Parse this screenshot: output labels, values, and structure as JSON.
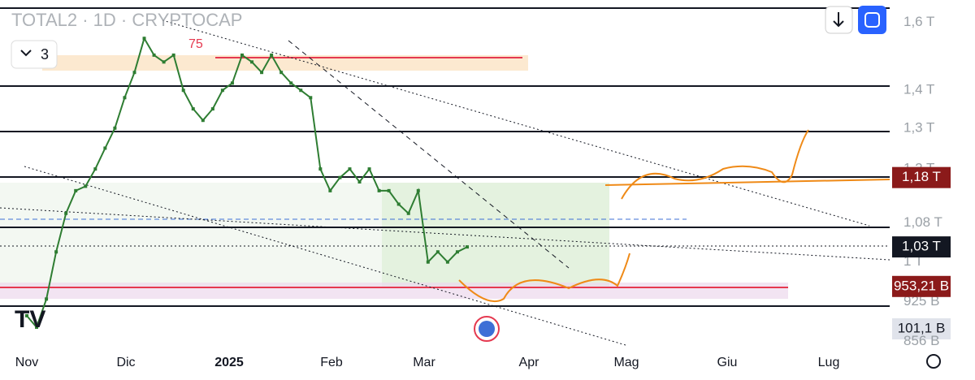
{
  "header": {
    "title": "TOTAL2 · 1D · CRYPTOCAP",
    "indicator_count": "3",
    "level_label": "75"
  },
  "chart_data": {
    "type": "line",
    "log_scale": true,
    "color": "#2e7d32",
    "ylim": [
      0.843,
      1.65
    ],
    "yticks": [
      {
        "value": 1.6,
        "label": "1,6 T"
      },
      {
        "value": 1.4,
        "label": "1,4 T"
      },
      {
        "value": 1.3,
        "label": "1,3 T"
      },
      {
        "value": 1.2,
        "label": "1,2 T"
      },
      {
        "value": 1.08,
        "label": "1,08 T"
      },
      {
        "value": 1,
        "label": "1 T"
      },
      {
        "value": 0.925,
        "label": "925 B"
      },
      {
        "value": 0.856,
        "label": "856 B"
      }
    ],
    "xticks": [
      "Nov",
      "Dic",
      "2025",
      "Feb",
      "Mar",
      "Apr",
      "Mag",
      "Giu",
      "Lug"
    ],
    "values": [
      0.9,
      0.88,
      0.93,
      1.02,
      1.1,
      1.15,
      1.16,
      1.2,
      1.25,
      1.3,
      1.38,
      1.45,
      1.55,
      1.5,
      1.48,
      1.5,
      1.4,
      1.35,
      1.32,
      1.35,
      1.4,
      1.42,
      1.5,
      1.48,
      1.45,
      1.5,
      1.45,
      1.42,
      1.4,
      1.38,
      1.2,
      1.15,
      1.18,
      1.2,
      1.17,
      1.2,
      1.15,
      1.15,
      1.12,
      1.1,
      1.15,
      1.0,
      1.02,
      1.0,
      1.02,
      1.03
    ],
    "price_tags": [
      {
        "value": 1.18,
        "label": "1,18 T",
        "color": "#8b1a1a"
      },
      {
        "value": 1.03,
        "label": "1,03 T",
        "color": "#131722"
      },
      {
        "value": 0.95321,
        "label": "953,21 B",
        "color": "#8b1a1a"
      }
    ],
    "volume_tag": "101,1 B"
  }
}
